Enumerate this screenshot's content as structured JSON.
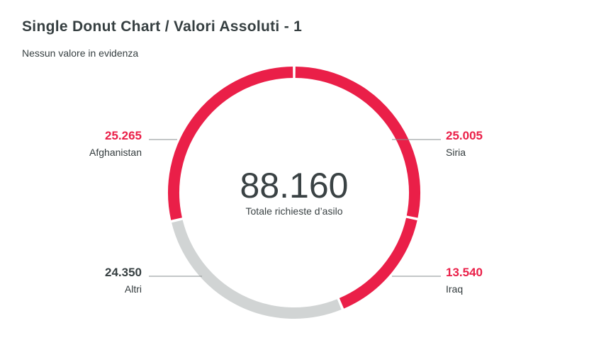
{
  "header": {
    "title": "Single Donut Chart / Valori Assoluti - 1",
    "subtitle": "Nessun valore in evidenza"
  },
  "chart_data": {
    "type": "pie",
    "variant": "donut",
    "total": {
      "value": "88.160",
      "label": "Totale richieste d’asilo"
    },
    "slices": [
      {
        "label": "Siria",
        "display": "25.005",
        "value": 25005,
        "color": "#ea1f48",
        "value_color": "#ea1f48",
        "side": "right"
      },
      {
        "label": "Iraq",
        "display": "13.540",
        "value": 13540,
        "color": "#ea1f48",
        "value_color": "#ea1f48",
        "side": "right"
      },
      {
        "label": "Altri",
        "display": "24.350",
        "value": 24350,
        "color": "#d1d4d4",
        "value_color": "#363f41",
        "side": "left"
      },
      {
        "label": "Afghanistan",
        "display": "25.265",
        "value": 25265,
        "color": "#ea1f48",
        "value_color": "#ea1f48",
        "side": "left"
      }
    ],
    "leader_color": "#8a8f90"
  }
}
